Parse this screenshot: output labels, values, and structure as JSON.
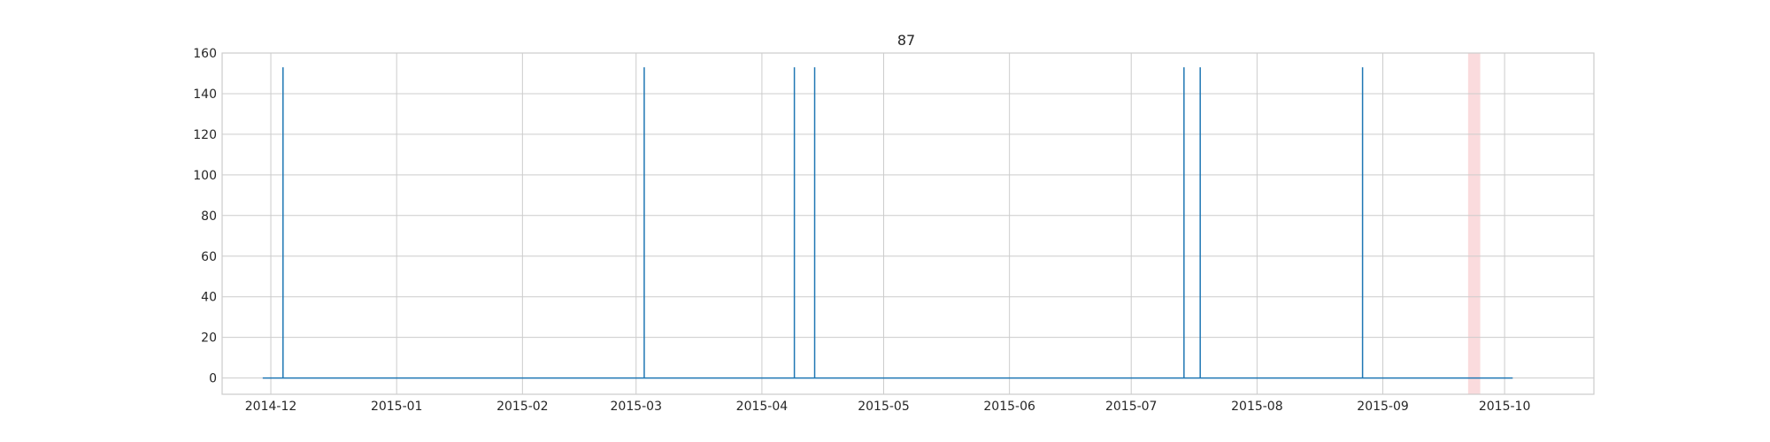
{
  "chart_data": {
    "type": "line",
    "title": "87",
    "xlabel": "",
    "ylabel": "",
    "x_axis_type": "date",
    "xlim": [
      "2014-11-19",
      "2015-10-23"
    ],
    "ylim": [
      -8,
      160
    ],
    "x_ticks": [
      "2014-12-01",
      "2015-01-01",
      "2015-02-01",
      "2015-03-01",
      "2015-04-01",
      "2015-05-01",
      "2015-06-01",
      "2015-07-01",
      "2015-08-01",
      "2015-09-01",
      "2015-10-01"
    ],
    "x_tick_labels": [
      "2014-12",
      "2015-01",
      "2015-02",
      "2015-03",
      "2015-04",
      "2015-05",
      "2015-06",
      "2015-07",
      "2015-08",
      "2015-09",
      "2015-10"
    ],
    "y_ticks": [
      0,
      20,
      40,
      60,
      80,
      100,
      120,
      140,
      160
    ],
    "y_tick_labels": [
      "0",
      "20",
      "40",
      "60",
      "80",
      "100",
      "120",
      "140",
      "160"
    ],
    "grid": true,
    "series": [
      {
        "color": "#1f77b4",
        "x_start": "2014-11-29",
        "x_end": "2015-10-03",
        "baseline": 0,
        "spikes": [
          {
            "x": "2014-12-04",
            "y": 153
          },
          {
            "x": "2015-03-03",
            "y": 153
          },
          {
            "x": "2015-04-09",
            "y": 153
          },
          {
            "x": "2015-04-14",
            "y": 153
          },
          {
            "x": "2015-07-14",
            "y": 153
          },
          {
            "x": "2015-07-18",
            "y": 153
          },
          {
            "x": "2015-08-27",
            "y": 153
          }
        ]
      }
    ],
    "shaded_regions": [
      {
        "x_start": "2015-09-22",
        "x_end": "2015-09-25",
        "color": "#fadbdd"
      }
    ]
  }
}
